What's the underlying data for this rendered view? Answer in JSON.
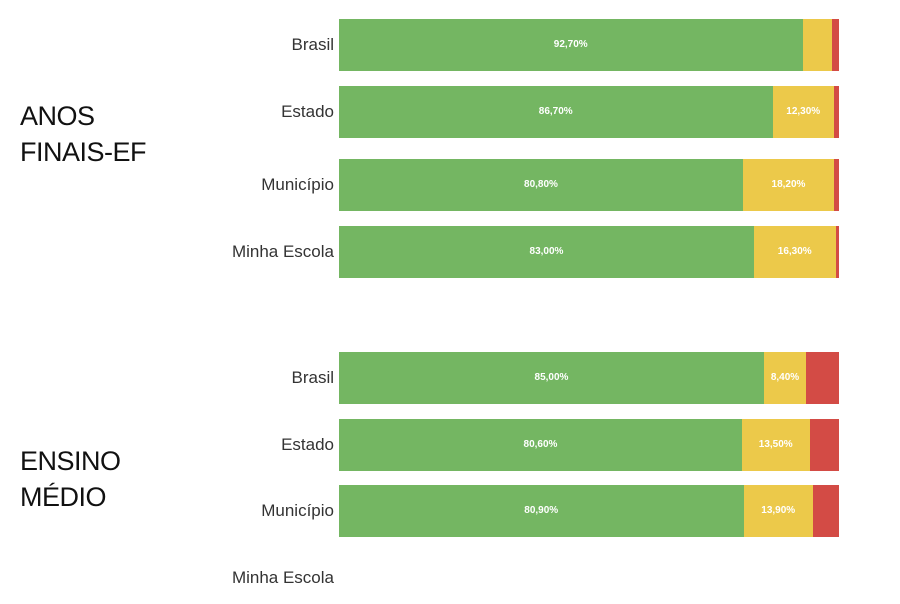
{
  "colors": {
    "green": "#74b662",
    "yellow": "#ecc94a",
    "red": "#d34b45"
  },
  "sections": [
    {
      "title_lines": [
        "ANOS",
        "FINAIS-EF"
      ]
    },
    {
      "title_lines": [
        "ENSINO",
        "MÉDIO"
      ]
    }
  ],
  "chart_data": [
    {
      "type": "bar",
      "orientation": "horizontal",
      "stacked": "100%",
      "title": "ANOS FINAIS-EF",
      "categories": [
        "Brasil",
        "Estado",
        "Município",
        "Minha Escola"
      ],
      "series": [
        {
          "color": "#74b662",
          "values": [
            92.7,
            86.7,
            80.8,
            83.0
          ],
          "labels": [
            "92,70%",
            "86,70%",
            "80,80%",
            "83,00%"
          ]
        },
        {
          "color": "#ecc94a",
          "values": [
            5.9,
            12.3,
            18.2,
            16.3
          ],
          "labels": [
            "",
            "12,30%",
            "18,20%",
            "16,30%"
          ]
        },
        {
          "color": "#d34b45",
          "values": [
            1.4,
            1.0,
            1.0,
            0.7
          ],
          "labels": [
            "",
            "",
            "",
            ""
          ]
        }
      ]
    },
    {
      "type": "bar",
      "orientation": "horizontal",
      "stacked": "100%",
      "title": "ENSINO MÉDIO",
      "categories": [
        "Brasil",
        "Estado",
        "Município",
        "Minha Escola"
      ],
      "series": [
        {
          "color": "#74b662",
          "values": [
            85.0,
            80.6,
            80.9,
            null
          ],
          "labels": [
            "85,00%",
            "80,60%",
            "80,90%",
            ""
          ]
        },
        {
          "color": "#ecc94a",
          "values": [
            8.4,
            13.5,
            13.9,
            null
          ],
          "labels": [
            "8,40%",
            "13,50%",
            "13,90%",
            ""
          ]
        },
        {
          "color": "#d34b45",
          "values": [
            6.6,
            5.9,
            5.2,
            null
          ],
          "labels": [
            "",
            "",
            "",
            ""
          ]
        }
      ]
    }
  ]
}
